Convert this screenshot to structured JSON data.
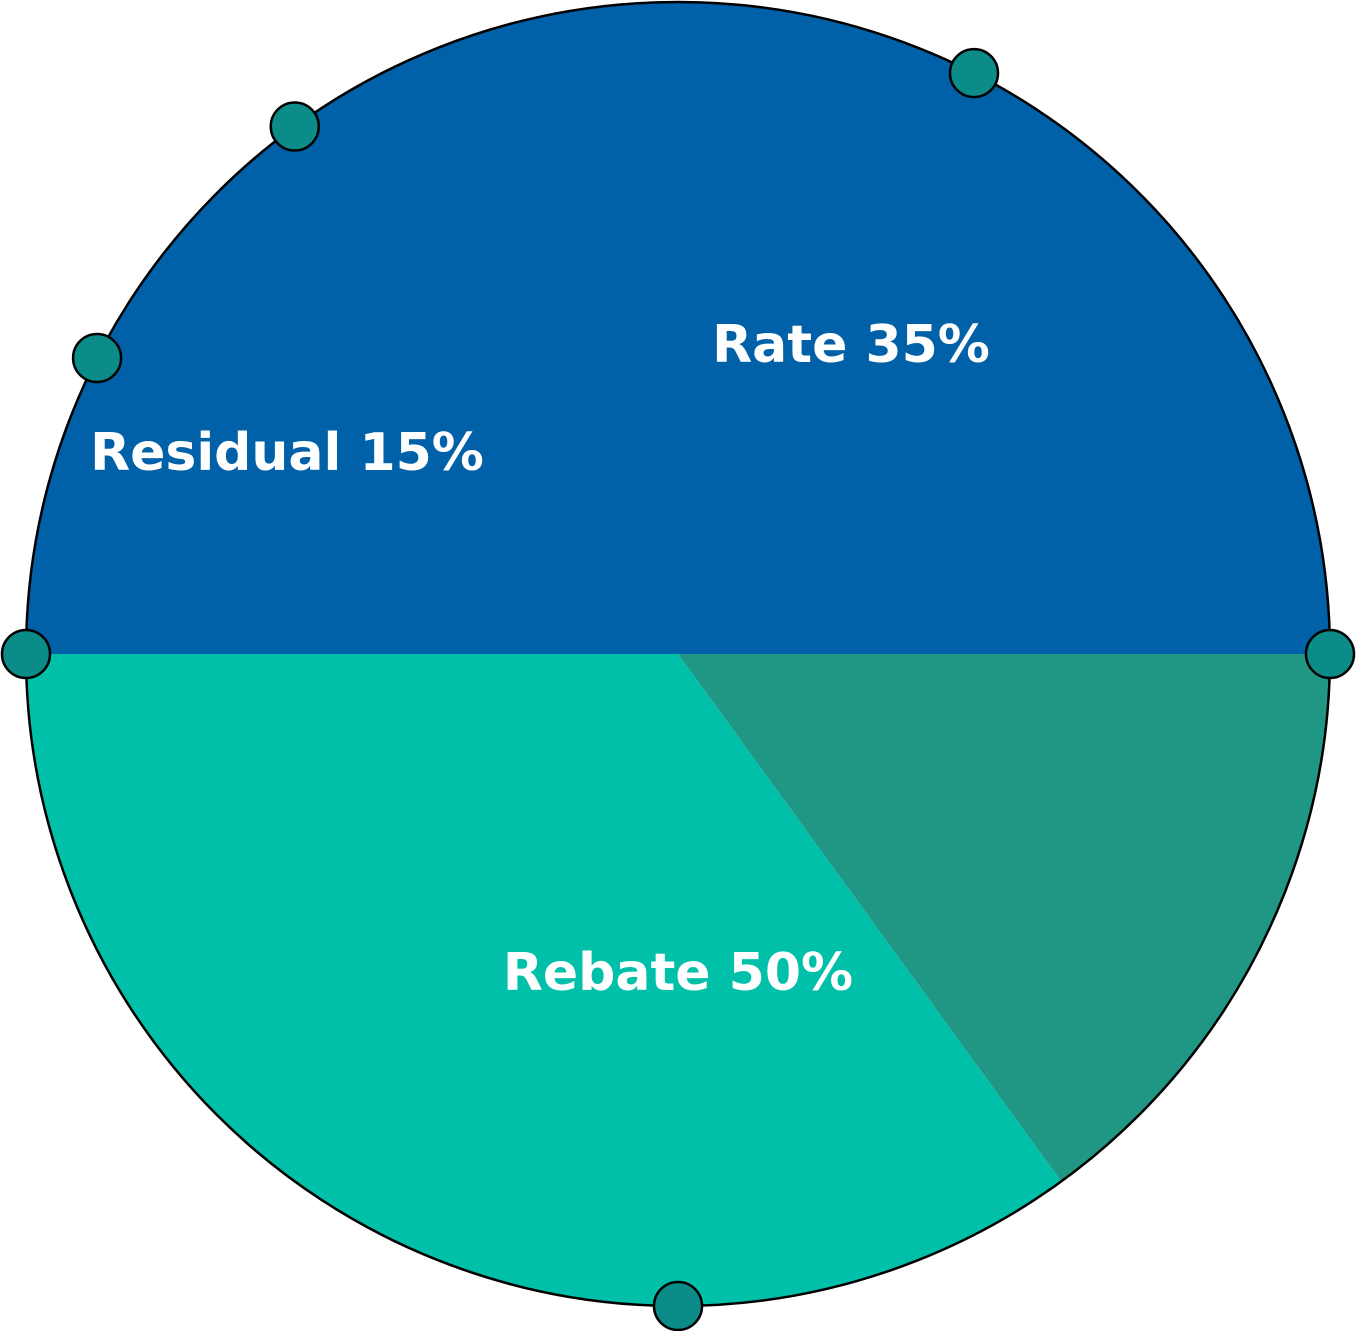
{
  "chart_data": {
    "type": "pie",
    "categories": [
      "Rebate",
      "Residual",
      "Rate"
    ],
    "values": [
      50,
      15,
      35
    ],
    "colors": [
      "#0060A8",
      "#209684",
      "#00C0AA"
    ],
    "data_labels": [
      "Rebate 50%",
      "Residual 15%",
      "Rate 35%"
    ],
    "marker_color": "#0C8C88",
    "outline_color": "#000000",
    "legend": "none",
    "title": ""
  }
}
